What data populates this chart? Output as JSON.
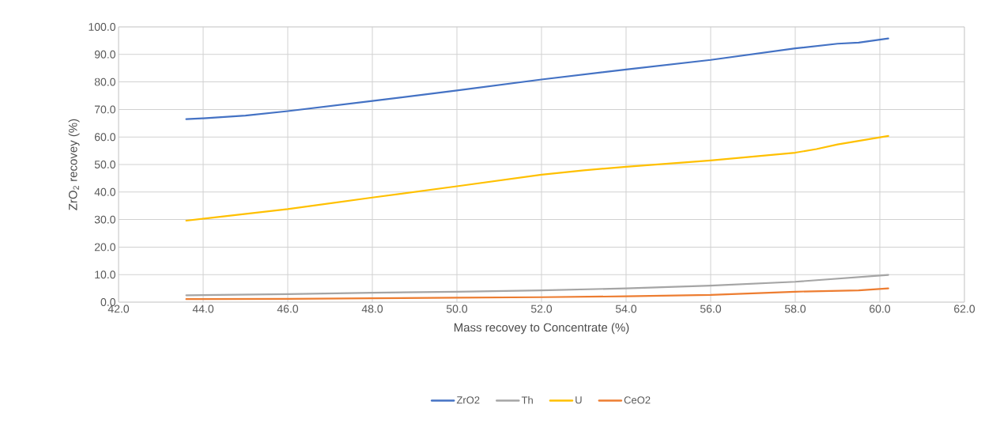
{
  "chart_data": {
    "type": "line",
    "xlabel": "Mass recovey to Concentrate (%)",
    "ylabel": "ZrO$_{2}$ recovey (%)",
    "xlim": [
      42,
      62
    ],
    "ylim": [
      0,
      100
    ],
    "xticks": [
      {
        "value": 42,
        "label": "42.0"
      },
      {
        "value": 44,
        "label": "44.0"
      },
      {
        "value": 46,
        "label": "46.0"
      },
      {
        "value": 48,
        "label": "48.0"
      },
      {
        "value": 50,
        "label": "50.0"
      },
      {
        "value": 52,
        "label": "52.0"
      },
      {
        "value": 54,
        "label": "54.0"
      },
      {
        "value": 56,
        "label": "56.0"
      },
      {
        "value": 58,
        "label": "58.0"
      },
      {
        "value": 60,
        "label": "60.0"
      },
      {
        "value": 62,
        "label": "62.0"
      }
    ],
    "yticks": [
      {
        "value": 0,
        "label": "0.0"
      },
      {
        "value": 10,
        "label": "10.0"
      },
      {
        "value": 20,
        "label": "20.0"
      },
      {
        "value": 30,
        "label": "30.0"
      },
      {
        "value": 40,
        "label": "40.0"
      },
      {
        "value": 50,
        "label": "50.0"
      },
      {
        "value": 60,
        "label": "60.0"
      },
      {
        "value": 70,
        "label": "70.0"
      },
      {
        "value": 80,
        "label": "80.0"
      },
      {
        "value": 90,
        "label": "90.0"
      },
      {
        "value": 100,
        "label": "100.0"
      }
    ],
    "grid": true,
    "legend": "bottom",
    "marker": "none",
    "line_style": "solid",
    "series": [
      {
        "name": "ZrO2",
        "color": "#4472c4",
        "x": [
          43.6,
          44,
          45,
          46,
          48,
          50,
          52,
          54,
          56,
          58,
          59,
          59.5,
          60.2
        ],
        "values": [
          66.5,
          66.8,
          67.8,
          69.4,
          73.1,
          76.9,
          80.9,
          84.5,
          88.0,
          92.2,
          93.9,
          94.3,
          95.8
        ]
      },
      {
        "name": "Th",
        "color": "#a5a5a5",
        "x": [
          43.6,
          46,
          48,
          50,
          52,
          54,
          56,
          58,
          60.2
        ],
        "values": [
          2.5,
          2.9,
          3.4,
          3.8,
          4.3,
          5.0,
          6.0,
          7.4,
          9.9
        ]
      },
      {
        "name": "U",
        "color": "#ffc000",
        "x": [
          43.6,
          46,
          48,
          50,
          52,
          53,
          54,
          56,
          58,
          58.5,
          59,
          60.2
        ],
        "values": [
          29.6,
          33.8,
          38.0,
          42.1,
          46.3,
          47.9,
          49.2,
          51.5,
          54.3,
          55.6,
          57.3,
          60.4
        ]
      },
      {
        "name": "CeO2",
        "color": "#ed7d31",
        "x": [
          43.6,
          46,
          48,
          50,
          52,
          54,
          56,
          58,
          59.5,
          60.2
        ],
        "values": [
          1.1,
          1.2,
          1.4,
          1.6,
          1.8,
          2.1,
          2.6,
          3.8,
          4.3,
          5.0
        ]
      }
    ]
  }
}
